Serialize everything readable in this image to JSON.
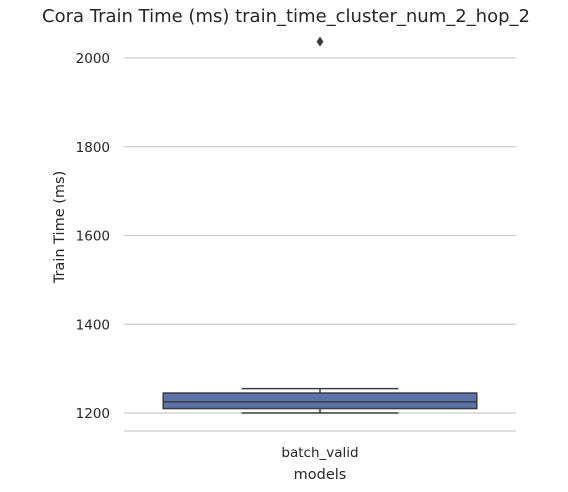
{
  "chart_data": {
    "type": "box",
    "title": "Cora Train Time (ms) train_time_cluster_num_2_hop_2",
    "xlabel": "models",
    "ylabel": "Train Time (ms)",
    "categories": [
      "batch_valid"
    ],
    "ylim": [
      1160,
      2070
    ],
    "yticks": [
      1200,
      1400,
      1600,
      1800,
      2000
    ],
    "grid": "horizontal",
    "boxes": [
      {
        "category": "batch_valid",
        "whisker_low": 1200,
        "q1": 1210,
        "median": 1225,
        "q3": 1245,
        "whisker_high": 1255,
        "outliers": [
          2037
        ]
      }
    ],
    "colors": {
      "box_fill": "#5a74a8",
      "box_edge": "#3d3d3d",
      "grid": "#cccccc"
    }
  }
}
